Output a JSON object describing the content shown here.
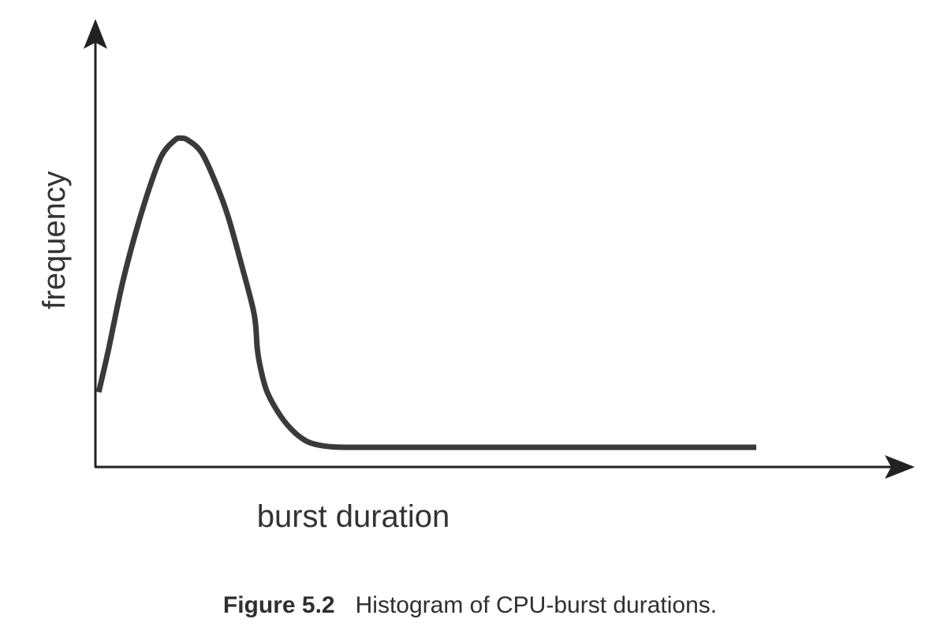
{
  "chart_data": {
    "type": "line",
    "title": "",
    "xlabel": "burst duration",
    "ylabel": "frequency",
    "xlim": [
      0,
      1
    ],
    "ylim": [
      0,
      1
    ],
    "x_ticks": [],
    "y_ticks": [],
    "grid": false,
    "legend": "none",
    "line_color": "#3a3a3a",
    "axis_color": "#222222",
    "series": [
      {
        "x": [
          0.005,
          0.02,
          0.04,
          0.06,
          0.08,
          0.1,
          0.12,
          0.13,
          0.14,
          0.16,
          0.18,
          0.2,
          0.22,
          0.24,
          0.245,
          0.25,
          0.26,
          0.28,
          0.3,
          0.32,
          0.34,
          0.36,
          0.38,
          0.4,
          0.45,
          0.5,
          0.6,
          0.7,
          0.8,
          0.9,
          0.95,
          1.0
        ],
        "y": [
          0.19,
          0.3,
          0.46,
          0.59,
          0.7,
          0.79,
          0.83,
          0.835,
          0.83,
          0.8,
          0.73,
          0.64,
          0.52,
          0.39,
          0.3,
          0.25,
          0.19,
          0.13,
          0.09,
          0.065,
          0.055,
          0.051,
          0.05,
          0.05,
          0.05,
          0.05,
          0.05,
          0.05,
          0.05,
          0.05,
          0.05,
          0.05
        ]
      }
    ]
  },
  "caption": {
    "number": "Figure 5.2",
    "text": "Histogram of CPU-burst durations."
  }
}
